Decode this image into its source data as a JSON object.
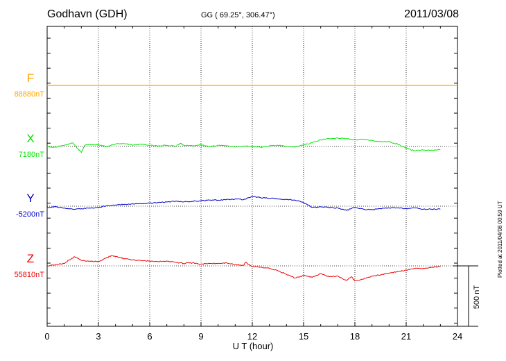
{
  "header": {
    "station": "Godhavn (GDH)",
    "coords": "GG ( 69.25°, 306.47°)",
    "date": "2011/03/08"
  },
  "footer": {
    "plotted": "Plotted at 2011/04/08 00:59 UT"
  },
  "scale": {
    "label": "500 nT",
    "value_nT": 500
  },
  "colors": {
    "F": "#ffa500",
    "X": "#00e600",
    "Y": "#0000cc",
    "Z": "#ee0000"
  },
  "chart_data": {
    "type": "line",
    "title": "Godhavn (GDH)",
    "xlabel": "U T (hour)",
    "ylabel": "",
    "xlim": [
      0,
      24
    ],
    "xticks": [
      0,
      3,
      6,
      9,
      12,
      15,
      18,
      21,
      24
    ],
    "grid": true,
    "units": "nT",
    "series": [
      {
        "name": "F",
        "baseline_label": "88880nT",
        "baseline": 88880,
        "x": [
          0,
          24
        ],
        "values": [
          88880,
          88880
        ]
      },
      {
        "name": "X",
        "baseline_label": "7180nT",
        "baseline": 7180,
        "x": [
          0,
          0.5,
          1,
          1.5,
          1.8,
          2,
          2.2,
          2.5,
          3,
          3.5,
          4,
          4.5,
          5,
          5.5,
          6,
          6.5,
          7,
          7.5,
          7.8,
          8,
          8.5,
          9,
          9.5,
          10,
          10.5,
          11,
          11.5,
          12,
          12.5,
          13,
          13.5,
          14,
          14.5,
          15,
          15.5,
          16,
          16.5,
          17,
          17.5,
          18,
          18.5,
          19,
          19.5,
          20,
          20.5,
          21,
          21.5,
          22,
          22.5,
          23
        ],
        "values": [
          7180,
          7175,
          7190,
          7210,
          7160,
          7130,
          7190,
          7195,
          7195,
          7180,
          7200,
          7205,
          7190,
          7200,
          7190,
          7185,
          7190,
          7180,
          7205,
          7190,
          7185,
          7195,
          7180,
          7190,
          7185,
          7175,
          7185,
          7180,
          7175,
          7185,
          7190,
          7180,
          7175,
          7195,
          7210,
          7235,
          7245,
          7250,
          7245,
          7235,
          7240,
          7230,
          7220,
          7220,
          7200,
          7165,
          7145,
          7150,
          7150,
          7155
        ]
      },
      {
        "name": "Y",
        "baseline_label": "-5200nT",
        "baseline": -5200,
        "x": [
          0,
          0.5,
          1,
          1.5,
          2,
          2.5,
          3,
          3.5,
          4,
          4.5,
          5,
          5.5,
          6,
          6.5,
          7,
          7.5,
          8,
          8.5,
          9,
          9.5,
          10,
          10.5,
          11,
          11.5,
          12,
          12.5,
          13,
          13.5,
          14,
          14.5,
          15,
          15.5,
          16,
          16.5,
          17,
          17.5,
          18,
          18.5,
          19,
          19.5,
          20,
          20.5,
          21,
          21.5,
          22,
          22.5,
          23
        ],
        "values": [
          -5210,
          -5205,
          -5215,
          -5225,
          -5220,
          -5215,
          -5210,
          -5195,
          -5190,
          -5185,
          -5180,
          -5180,
          -5175,
          -5170,
          -5165,
          -5160,
          -5165,
          -5160,
          -5155,
          -5150,
          -5150,
          -5145,
          -5140,
          -5145,
          -5120,
          -5130,
          -5135,
          -5140,
          -5145,
          -5150,
          -5170,
          -5210,
          -5205,
          -5210,
          -5215,
          -5235,
          -5210,
          -5225,
          -5230,
          -5220,
          -5215,
          -5215,
          -5220,
          -5215,
          -5225,
          -5225,
          -5225
        ]
      },
      {
        "name": "Z",
        "baseline_label": "55810nT",
        "baseline": 55810,
        "x": [
          0,
          0.5,
          1,
          1.3,
          1.6,
          2,
          2.5,
          3,
          3.5,
          3.8,
          4.2,
          4.5,
          5,
          5.5,
          6,
          6.5,
          7,
          7.5,
          8,
          8.5,
          9,
          9.5,
          10,
          10.5,
          11,
          11.5,
          11.6,
          12,
          12.5,
          13,
          13.5,
          14,
          14.5,
          15,
          15.5,
          16,
          16.5,
          17,
          17.5,
          17.8,
          18,
          18.5,
          19,
          19.5,
          20,
          20.5,
          21,
          21.5,
          22,
          22.5,
          23
        ],
        "values": [
          55810,
          55820,
          55830,
          55860,
          55885,
          55855,
          55850,
          55845,
          55880,
          55895,
          55880,
          55870,
          55860,
          55855,
          55850,
          55845,
          55850,
          55840,
          55830,
          55835,
          55825,
          55830,
          55830,
          55835,
          55820,
          55815,
          55840,
          55805,
          55800,
          55790,
          55770,
          55740,
          55710,
          55730,
          55715,
          55745,
          55720,
          55725,
          55690,
          55720,
          55685,
          55700,
          55725,
          55735,
          55750,
          55765,
          55775,
          55790,
          55790,
          55800,
          55805
        ]
      }
    ]
  }
}
